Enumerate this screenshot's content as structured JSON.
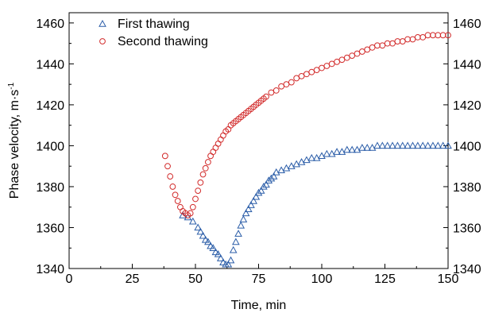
{
  "chart_data": {
    "type": "scatter",
    "xlabel": "Time, min",
    "ylabel": "Phase velocity, m·s",
    "ylabel_superscript": "-1",
    "xlim": [
      0,
      150
    ],
    "ylim": [
      1340,
      1465
    ],
    "x_ticks": [
      0,
      25,
      50,
      75,
      100,
      125,
      150
    ],
    "x_tick_labels": [
      "0",
      "25",
      "50",
      "75",
      "100",
      "125",
      "150"
    ],
    "y_ticks": [
      1340,
      1360,
      1380,
      1400,
      1420,
      1440,
      1460
    ],
    "y_tick_labels": [
      "1340",
      "1360",
      "1380",
      "1400",
      "1420",
      "1440",
      "1460"
    ],
    "mirror_y_axis_right": true,
    "grid": false,
    "legend_position": "top-left",
    "series": [
      {
        "name": "First thawing",
        "marker": "triangle-open",
        "color": "#2b5da8",
        "x": [
          45,
          47,
          49,
          51,
          52,
          53,
          54,
          55,
          56,
          57,
          58,
          59,
          60,
          61,
          62,
          63,
          64,
          65,
          66,
          67,
          68,
          69,
          70,
          71,
          72,
          73,
          74,
          75,
          76,
          77,
          78,
          79,
          80,
          81,
          82,
          84,
          86,
          88,
          90,
          92,
          94,
          96,
          98,
          100,
          102,
          104,
          106,
          108,
          110,
          112,
          114,
          116,
          118,
          120,
          122,
          124,
          126,
          128,
          130,
          132,
          134,
          136,
          138,
          140,
          142,
          144,
          146,
          148,
          150
        ],
        "y": [
          1366,
          1365,
          1363,
          1360,
          1358,
          1356,
          1354,
          1353,
          1351,
          1350,
          1348,
          1347,
          1345,
          1343,
          1342,
          1342,
          1344,
          1349,
          1353,
          1357,
          1361,
          1364,
          1367,
          1369,
          1371,
          1373,
          1375,
          1377,
          1378,
          1380,
          1381,
          1383,
          1384,
          1385,
          1387,
          1388,
          1389,
          1390,
          1391,
          1392,
          1393,
          1394,
          1394,
          1395,
          1396,
          1396,
          1397,
          1397,
          1398,
          1398,
          1398,
          1399,
          1399,
          1399,
          1400,
          1400,
          1400,
          1400,
          1400,
          1400,
          1400,
          1400,
          1400,
          1400,
          1400,
          1400,
          1400,
          1400,
          1400
        ]
      },
      {
        "name": "Second thawing",
        "marker": "circle-open",
        "color": "#d22b2b",
        "x": [
          38,
          39,
          40,
          41,
          42,
          43,
          44,
          45,
          46,
          47,
          48,
          49,
          50,
          51,
          52,
          53,
          54,
          55,
          56,
          57,
          58,
          59,
          60,
          61,
          62,
          63,
          64,
          65,
          66,
          67,
          68,
          69,
          70,
          71,
          72,
          73,
          74,
          75,
          76,
          77,
          78,
          80,
          82,
          84,
          86,
          88,
          90,
          92,
          94,
          96,
          98,
          100,
          102,
          104,
          106,
          108,
          110,
          112,
          114,
          116,
          118,
          120,
          122,
          124,
          126,
          128,
          130,
          132,
          134,
          136,
          138,
          140,
          142,
          144,
          146,
          148,
          150
        ],
        "y": [
          1395,
          1390,
          1385,
          1380,
          1376,
          1373,
          1370,
          1368,
          1367,
          1366,
          1367,
          1370,
          1374,
          1378,
          1382,
          1386,
          1389,
          1392,
          1395,
          1397,
          1399,
          1401,
          1403,
          1405,
          1407,
          1408,
          1410,
          1411,
          1412,
          1413,
          1414,
          1415,
          1416,
          1417,
          1418,
          1419,
          1420,
          1421,
          1422,
          1423,
          1424,
          1426,
          1427,
          1429,
          1430,
          1431,
          1433,
          1434,
          1435,
          1436,
          1437,
          1438,
          1439,
          1440,
          1441,
          1442,
          1443,
          1444,
          1445,
          1446,
          1447,
          1448,
          1449,
          1449,
          1450,
          1450,
          1451,
          1451,
          1452,
          1452,
          1453,
          1453,
          1454,
          1454,
          1454,
          1454,
          1454
        ]
      }
    ]
  }
}
